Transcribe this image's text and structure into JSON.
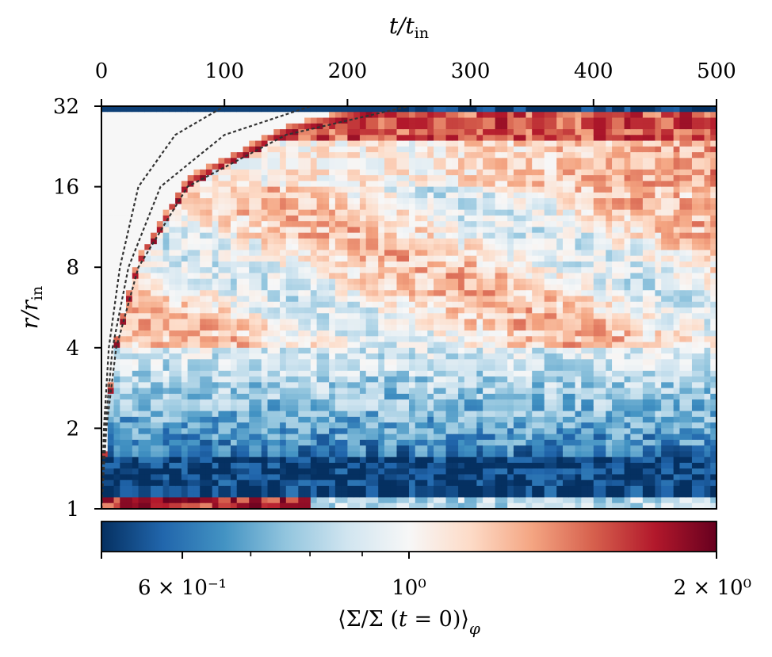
{
  "chart_data": {
    "type": "heatmap",
    "title": "",
    "xlabel": "t/t_in",
    "ylabel": "r/r_in",
    "x_axis_position": "top",
    "xlim": [
      0,
      500
    ],
    "xticks": [
      0,
      100,
      200,
      300,
      400,
      500
    ],
    "xtick_labels": [
      "0",
      "100",
      "200",
      "300",
      "400",
      "500"
    ],
    "ylim": [
      1,
      32
    ],
    "y_scale": "log2",
    "yticks": [
      1,
      2,
      4,
      8,
      16,
      32
    ],
    "ytick_labels": [
      "1",
      "2",
      "4",
      "8",
      "16",
      "32"
    ],
    "colorbar": {
      "label": "⟨Σ/Σ (t = 0)⟩_φ",
      "scale": "log",
      "range": [
        0.5,
        2.0
      ],
      "ticks": [
        0.6,
        1.0,
        2.0
      ],
      "tick_labels": [
        "6 × 10⁻¹",
        "10⁰",
        "2 × 10⁰"
      ],
      "minor_ticks": [
        0.7,
        0.8,
        0.9
      ],
      "colormap": "RdBu_r",
      "colors": [
        "#053061",
        "#2166ac",
        "#4393c3",
        "#92c5de",
        "#d1e5f0",
        "#f7f7f7",
        "#fddbc7",
        "#f4a582",
        "#d6604d",
        "#b2182b",
        "#67001f"
      ]
    },
    "dashed_curves": {
      "color": "#333333",
      "count": 3,
      "points": [
        [
          [
            0,
            1
          ],
          [
            2,
            2
          ],
          [
            6,
            4
          ],
          [
            15,
            8
          ],
          [
            30,
            16
          ],
          [
            60,
            25
          ],
          [
            100,
            32
          ]
        ],
        [
          [
            0,
            1
          ],
          [
            3,
            2
          ],
          [
            9,
            4
          ],
          [
            22,
            8
          ],
          [
            48,
            16
          ],
          [
            100,
            25
          ],
          [
            170,
            32
          ]
        ],
        [
          [
            0,
            1
          ],
          [
            4,
            2
          ],
          [
            12,
            4
          ],
          [
            30,
            8
          ],
          [
            70,
            16
          ],
          [
            150,
            25
          ],
          [
            250,
            32
          ]
        ]
      ]
    },
    "features": [
      {
        "name": "depleted inner band",
        "t": [
          0,
          500
        ],
        "r": [
          1.15,
          1.6
        ],
        "value": 0.5
      },
      {
        "name": "inner-edge overdensity",
        "t": [
          0,
          170
        ],
        "r": [
          1.0,
          1.12
        ],
        "value": 1.8
      },
      {
        "name": "depleted outer boundary",
        "t": [
          0,
          500
        ],
        "r": [
          31,
          32
        ],
        "value": 0.5
      },
      {
        "name": "outer overdense ridge",
        "t": [
          250,
          500
        ],
        "r": [
          24,
          30
        ],
        "value": 1.7
      },
      {
        "name": "front ridge",
        "t": [
          0,
          250
        ],
        "r": [
          1,
          32
        ],
        "value": 1.9
      },
      {
        "name": "mid-radius overdensity",
        "t": [
          20,
          500
        ],
        "r": [
          5,
          16
        ],
        "value": 1.25
      },
      {
        "name": "mid underdensity",
        "t": [
          100,
          500
        ],
        "r": [
          1.8,
          4
        ],
        "value": 0.7
      },
      {
        "name": "undisturbed region",
        "t": [
          0,
          60
        ],
        "r": [
          1,
          32
        ],
        "value": 1.0
      }
    ]
  }
}
